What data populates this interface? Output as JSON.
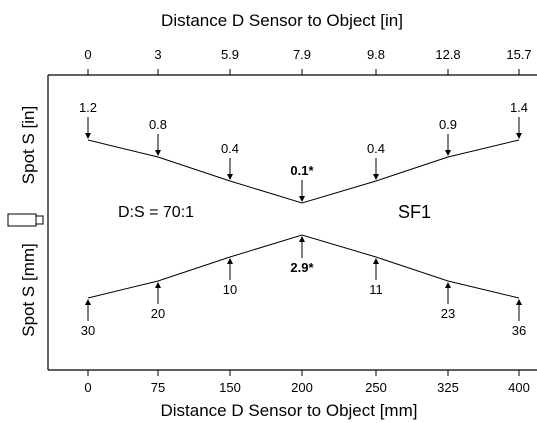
{
  "top_axis": {
    "title": "Distance D Sensor to Object [in]",
    "ticks": [
      "0",
      "3",
      "5.9",
      "7.9",
      "9.8",
      "12.8",
      "15.7"
    ]
  },
  "bottom_axis": {
    "title": "Distance D Sensor to Object [mm]",
    "ticks": [
      "0",
      "75",
      "150",
      "200",
      "250",
      "325",
      "400"
    ]
  },
  "left_labels": {
    "top": "Spot S [in]",
    "bottom": "Spot S [mm]"
  },
  "ratio_label": "D:S = 70:1",
  "model_label": "SF1",
  "spot_in": [
    "1.2",
    "0.8",
    "0.4",
    "0.1*",
    "0.4",
    "0.9",
    "1.4"
  ],
  "spot_mm": [
    "30",
    "20",
    "10",
    "2.9*",
    "11",
    "23",
    "36"
  ],
  "chart_data": {
    "type": "line",
    "x_in": [
      0,
      3,
      5.9,
      7.9,
      9.8,
      12.8,
      15.7
    ],
    "x_mm": [
      0,
      75,
      150,
      200,
      250,
      325,
      400
    ],
    "series": [
      {
        "values": [
          1.2,
          0.8,
          0.4,
          0.1,
          0.4,
          0.9,
          1.4
        ]
      },
      {
        "values": [
          30,
          20,
          10,
          2.9,
          11,
          23,
          36
        ]
      }
    ],
    "focus_point": {
      "mm": 200,
      "in": 7.9
    }
  }
}
